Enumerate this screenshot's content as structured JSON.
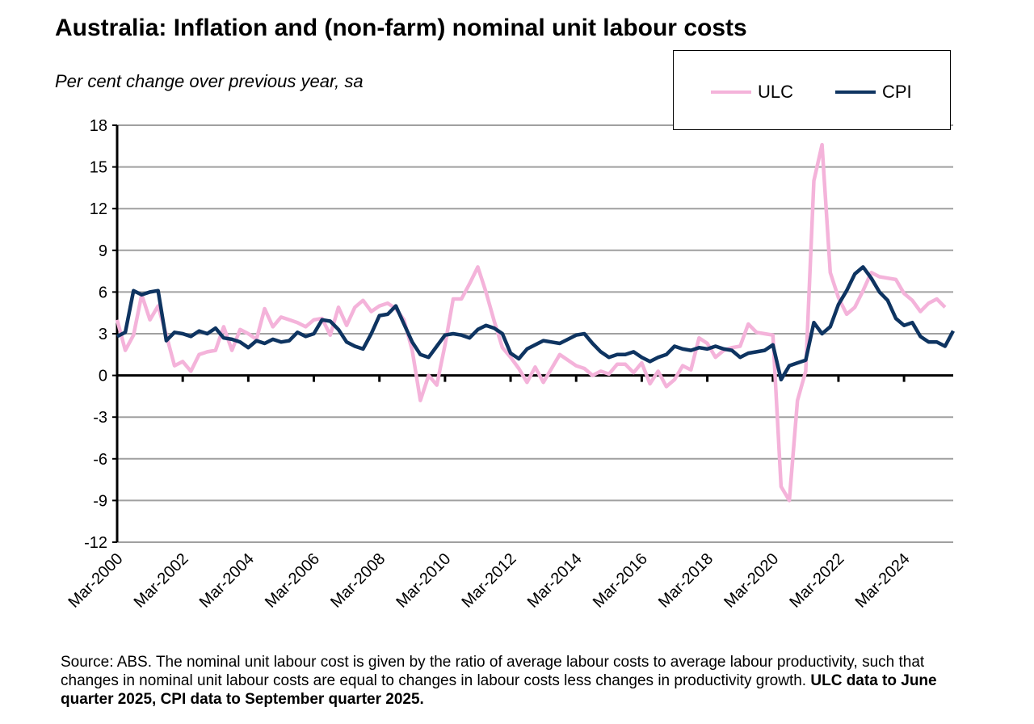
{
  "chart_data": {
    "type": "line",
    "title": "Australia: Inflation and (non-farm) nominal unit labour costs",
    "subtitle": "Per cent change over previous year, sa",
    "x_start": "Mar-2000",
    "frequency": "quarterly",
    "x_tick_labels": [
      "Mar-2000",
      "Mar-2002",
      "Mar-2004",
      "Mar-2006",
      "Mar-2008",
      "Mar-2010",
      "Mar-2012",
      "Mar-2014",
      "Mar-2016",
      "Mar-2018",
      "Mar-2020",
      "Mar-2022",
      "Mar-2024"
    ],
    "y_ticks": [
      18,
      15,
      12,
      9,
      6,
      3,
      0,
      -3,
      -6,
      -9,
      -12
    ],
    "ylim": [
      -12,
      18
    ],
    "grid": true,
    "legend_position": "top-right",
    "series": [
      {
        "name": "ULC",
        "color": "#f4b3da",
        "values": [
          4.0,
          1.8,
          2.9,
          5.8,
          4.0,
          5.0,
          2.9,
          0.7,
          1.0,
          0.3,
          1.5,
          1.7,
          1.8,
          3.5,
          1.8,
          3.3,
          3.0,
          2.6,
          4.8,
          3.5,
          4.2,
          4.0,
          3.8,
          3.5,
          4.0,
          4.1,
          2.9,
          4.9,
          3.6,
          4.9,
          5.4,
          4.6,
          5.0,
          5.2,
          4.8,
          4.0,
          1.8,
          -1.8,
          0.0,
          -0.7,
          2.2,
          5.5,
          5.5,
          6.6,
          7.8,
          6.0,
          3.9,
          2.0,
          1.3,
          0.5,
          -0.5,
          0.6,
          -0.5,
          0.5,
          1.5,
          1.1,
          0.7,
          0.5,
          0.0,
          0.3,
          0.1,
          0.8,
          0.8,
          0.2,
          0.9,
          -0.6,
          0.3,
          -0.8,
          -0.3,
          0.7,
          0.4,
          2.7,
          2.3,
          1.3,
          1.8,
          2.0,
          2.1,
          3.7,
          3.1,
          3.0,
          2.9,
          -8.0,
          -9.0,
          -1.8,
          0.3,
          14.0,
          16.6,
          7.4,
          5.6,
          4.4,
          4.9,
          6.1,
          7.4,
          7.1,
          7.0,
          6.9,
          5.9,
          5.4,
          4.6,
          5.2,
          5.5,
          4.9
        ]
      },
      {
        "name": "CPI",
        "color": "#0e3461",
        "values": [
          2.8,
          3.1,
          6.1,
          5.8,
          6.0,
          6.1,
          2.5,
          3.1,
          3.0,
          2.8,
          3.2,
          3.0,
          3.4,
          2.7,
          2.6,
          2.4,
          2.0,
          2.5,
          2.3,
          2.6,
          2.4,
          2.5,
          3.1,
          2.8,
          3.0,
          4.0,
          3.9,
          3.3,
          2.4,
          2.1,
          1.9,
          3.0,
          4.3,
          4.4,
          5.0,
          3.7,
          2.4,
          1.5,
          1.3,
          2.1,
          2.9,
          3.0,
          2.9,
          2.7,
          3.3,
          3.6,
          3.4,
          3.0,
          1.6,
          1.2,
          1.9,
          2.2,
          2.5,
          2.4,
          2.3,
          2.6,
          2.9,
          3.0,
          2.3,
          1.7,
          1.3,
          1.5,
          1.5,
          1.7,
          1.3,
          1.0,
          1.3,
          1.5,
          2.1,
          1.9,
          1.8,
          2.0,
          1.9,
          2.1,
          1.9,
          1.8,
          1.3,
          1.6,
          1.7,
          1.8,
          2.2,
          -0.3,
          0.7,
          0.9,
          1.1,
          3.8,
          3.0,
          3.5,
          5.1,
          6.1,
          7.3,
          7.8,
          7.0,
          6.0,
          5.4,
          4.1,
          3.6,
          3.8,
          2.8,
          2.4,
          2.4,
          2.1,
          3.2
        ]
      }
    ],
    "source_note": "Source: ABS. The nominal unit labour cost is given by the ratio of average labour costs to average labour productivity, such that  changes in nominal unit labour costs are equal to changes in labour costs less changes in productivity growth. ",
    "source_bold": "ULC data to June quarter 2025, CPI data to September quarter 2025."
  }
}
